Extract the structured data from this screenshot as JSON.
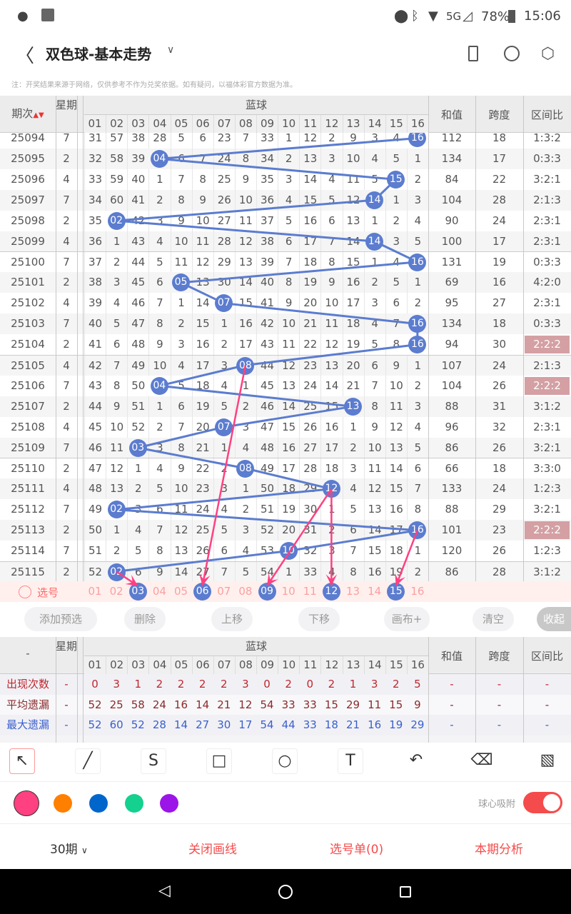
{
  "status": {
    "time": "15:06",
    "battery": "78%",
    "network": "5G",
    "left_icons": [
      "wechat-icon",
      "gallery-icon"
    ],
    "right_icons": [
      "location-icon",
      "bluetooth-icon",
      "wifi-icon",
      "signal-icon",
      "battery-icon"
    ]
  },
  "header": {
    "title": "双色球-基本走势",
    "back_icon": "chevron-left-icon",
    "dropdown_icon": "chevron-down-icon",
    "actions": [
      "portrait-icon",
      "share-icon",
      "settings-icon"
    ]
  },
  "note": "注：开奖结果来源于网络，仅供参考不作为兑奖依据。如有疑问，以福体彩官方数据为准。",
  "table": {
    "headers": {
      "period": "期次",
      "week": "星期",
      "blue": "蓝球",
      "sum": "和值",
      "span": "跨度",
      "ratio": "区间比"
    },
    "columns": [
      "01",
      "02",
      "03",
      "04",
      "05",
      "06",
      "07",
      "08",
      "09",
      "10",
      "11",
      "12",
      "13",
      "14",
      "15",
      "16"
    ],
    "ball_color": "#5b7ccf",
    "highlight_color": "#d4a0a3",
    "rows": [
      {
        "period": "25094",
        "week": "7",
        "hit": 16,
        "cells": [
          "31",
          "57",
          "38",
          "28",
          "5",
          "6",
          "23",
          "7",
          "33",
          "1",
          "12",
          "2",
          "9",
          "3",
          "4",
          "16"
        ],
        "sum": "112",
        "span": "18",
        "ratio": "1:3:2"
      },
      {
        "period": "25095",
        "week": "2",
        "hit": 4,
        "cells": [
          "32",
          "58",
          "39",
          "04",
          "6",
          "7",
          "24",
          "8",
          "34",
          "2",
          "13",
          "3",
          "10",
          "4",
          "5",
          "1"
        ],
        "sum": "134",
        "span": "17",
        "ratio": "0:3:3"
      },
      {
        "period": "25096",
        "week": "4",
        "hit": 15,
        "cells": [
          "33",
          "59",
          "40",
          "1",
          "7",
          "8",
          "25",
          "9",
          "35",
          "3",
          "14",
          "4",
          "11",
          "5",
          "15",
          "2"
        ],
        "sum": "84",
        "span": "22",
        "ratio": "3:2:1"
      },
      {
        "period": "25097",
        "week": "7",
        "hit": 14,
        "cells": [
          "34",
          "60",
          "41",
          "2",
          "8",
          "9",
          "26",
          "10",
          "36",
          "4",
          "15",
          "5",
          "12",
          "14",
          "1",
          "3"
        ],
        "sum": "104",
        "span": "28",
        "ratio": "2:1:3"
      },
      {
        "period": "25098",
        "week": "2",
        "hit": 2,
        "cells": [
          "35",
          "02",
          "42",
          "3",
          "9",
          "10",
          "27",
          "11",
          "37",
          "5",
          "16",
          "6",
          "13",
          "1",
          "2",
          "4"
        ],
        "sum": "90",
        "span": "24",
        "ratio": "2:3:1"
      },
      {
        "period": "25099",
        "week": "4",
        "hit": 14,
        "cells": [
          "36",
          "1",
          "43",
          "4",
          "10",
          "11",
          "28",
          "12",
          "38",
          "6",
          "17",
          "7",
          "14",
          "14",
          "3",
          "5"
        ],
        "sum": "100",
        "span": "17",
        "ratio": "2:3:1"
      },
      {
        "period": "25100",
        "week": "7",
        "hit": 16,
        "cells": [
          "37",
          "2",
          "44",
          "5",
          "11",
          "12",
          "29",
          "13",
          "39",
          "7",
          "18",
          "8",
          "15",
          "1",
          "4",
          "16"
        ],
        "sum": "131",
        "span": "19",
        "ratio": "0:3:3"
      },
      {
        "period": "25101",
        "week": "2",
        "hit": 5,
        "cells": [
          "38",
          "3",
          "45",
          "6",
          "05",
          "13",
          "30",
          "14",
          "40",
          "8",
          "19",
          "9",
          "16",
          "2",
          "5",
          "1"
        ],
        "sum": "69",
        "span": "16",
        "ratio": "4:2:0"
      },
      {
        "period": "25102",
        "week": "4",
        "hit": 7,
        "cells": [
          "39",
          "4",
          "46",
          "7",
          "1",
          "14",
          "07",
          "15",
          "41",
          "9",
          "20",
          "10",
          "17",
          "3",
          "6",
          "2"
        ],
        "sum": "95",
        "span": "27",
        "ratio": "2:3:1"
      },
      {
        "period": "25103",
        "week": "7",
        "hit": 16,
        "cells": [
          "40",
          "5",
          "47",
          "8",
          "2",
          "15",
          "1",
          "16",
          "42",
          "10",
          "21",
          "11",
          "18",
          "4",
          "7",
          "16"
        ],
        "sum": "134",
        "span": "18",
        "ratio": "0:3:3"
      },
      {
        "period": "25104",
        "week": "2",
        "hit": 16,
        "cells": [
          "41",
          "6",
          "48",
          "9",
          "3",
          "16",
          "2",
          "17",
          "43",
          "11",
          "22",
          "12",
          "19",
          "5",
          "8",
          "16"
        ],
        "sum": "94",
        "span": "30",
        "ratio": "2:2:2",
        "highlight": true
      },
      {
        "period": "25105",
        "week": "4",
        "hit": 8,
        "cells": [
          "42",
          "7",
          "49",
          "10",
          "4",
          "17",
          "3",
          "08",
          "44",
          "12",
          "23",
          "13",
          "20",
          "6",
          "9",
          "1"
        ],
        "sum": "107",
        "span": "24",
        "ratio": "2:1:3"
      },
      {
        "period": "25106",
        "week": "7",
        "hit": 4,
        "cells": [
          "43",
          "8",
          "50",
          "04",
          "5",
          "18",
          "4",
          "1",
          "45",
          "13",
          "24",
          "14",
          "21",
          "7",
          "10",
          "2"
        ],
        "sum": "104",
        "span": "26",
        "ratio": "2:2:2",
        "highlight": true
      },
      {
        "period": "25107",
        "week": "2",
        "hit": 13,
        "cells": [
          "44",
          "9",
          "51",
          "1",
          "6",
          "19",
          "5",
          "2",
          "46",
          "14",
          "25",
          "15",
          "13",
          "8",
          "11",
          "3"
        ],
        "sum": "88",
        "span": "31",
        "ratio": "3:1:2"
      },
      {
        "period": "25108",
        "week": "4",
        "hit": 7,
        "cells": [
          "45",
          "10",
          "52",
          "2",
          "7",
          "20",
          "07",
          "3",
          "47",
          "15",
          "26",
          "16",
          "1",
          "9",
          "12",
          "4"
        ],
        "sum": "96",
        "span": "32",
        "ratio": "2:3:1"
      },
      {
        "period": "25109",
        "week": "7",
        "hit": 3,
        "cells": [
          "46",
          "11",
          "03",
          "3",
          "8",
          "21",
          "1",
          "4",
          "48",
          "16",
          "27",
          "17",
          "2",
          "10",
          "13",
          "5"
        ],
        "sum": "86",
        "span": "26",
        "ratio": "3:2:1"
      },
      {
        "period": "25110",
        "week": "2",
        "hit": 8,
        "cells": [
          "47",
          "12",
          "1",
          "4",
          "9",
          "22",
          "2",
          "08",
          "49",
          "17",
          "28",
          "18",
          "3",
          "11",
          "14",
          "6"
        ],
        "sum": "66",
        "span": "18",
        "ratio": "3:3:0"
      },
      {
        "period": "25111",
        "week": "4",
        "hit": 12,
        "cells": [
          "48",
          "13",
          "2",
          "5",
          "10",
          "23",
          "3",
          "1",
          "50",
          "18",
          "29",
          "12",
          "4",
          "12",
          "15",
          "7"
        ],
        "sum": "133",
        "span": "24",
        "ratio": "1:2:3"
      },
      {
        "period": "25112",
        "week": "7",
        "hit": 2,
        "cells": [
          "49",
          "02",
          "3",
          "6",
          "11",
          "24",
          "4",
          "2",
          "51",
          "19",
          "30",
          "1",
          "5",
          "13",
          "16",
          "8"
        ],
        "sum": "88",
        "span": "29",
        "ratio": "3:2:1"
      },
      {
        "period": "25113",
        "week": "2",
        "hit": 16,
        "cells": [
          "50",
          "1",
          "4",
          "7",
          "12",
          "25",
          "5",
          "3",
          "52",
          "20",
          "31",
          "2",
          "6",
          "14",
          "17",
          "16"
        ],
        "sum": "101",
        "span": "23",
        "ratio": "2:2:2",
        "highlight": true
      },
      {
        "period": "25114",
        "week": "7",
        "hit": 10,
        "cells": [
          "51",
          "2",
          "5",
          "8",
          "13",
          "26",
          "6",
          "4",
          "53",
          "10",
          "32",
          "3",
          "7",
          "15",
          "18",
          "1"
        ],
        "sum": "120",
        "span": "26",
        "ratio": "1:2:3"
      },
      {
        "period": "25115",
        "week": "2",
        "hit": 2,
        "cells": [
          "52",
          "02",
          "6",
          "9",
          "14",
          "27",
          "7",
          "5",
          "54",
          "1",
          "33",
          "4",
          "8",
          "16",
          "19",
          "2"
        ],
        "sum": "86",
        "span": "28",
        "ratio": "3:1:2"
      }
    ],
    "select_row": {
      "label": "选号",
      "selected": [
        3,
        6,
        9,
        12,
        15
      ]
    },
    "arrows": [
      {
        "from_period": "25115",
        "from_col": 2,
        "to_col": 3
      },
      {
        "from_period": "25105",
        "from_col": 8,
        "to_col": 6
      },
      {
        "from_period": "25111",
        "from_col": 12,
        "to_col": 9
      },
      {
        "from_period": "25111",
        "from_col": 12,
        "to_col": 12
      },
      {
        "from_period": "25113",
        "from_col": 16,
        "to_col": 15
      }
    ],
    "arrow_color": "#ff4081"
  },
  "buttons": [
    "添加预选",
    "删除",
    "上移",
    "下移",
    "画布+",
    "清空",
    "收起"
  ],
  "stats": {
    "header_first": "-",
    "rows": [
      {
        "label": "出现次数",
        "color": "#c0262d",
        "week": "-",
        "values": [
          "0",
          "3",
          "1",
          "2",
          "2",
          "2",
          "2",
          "3",
          "0",
          "2",
          "0",
          "2",
          "1",
          "3",
          "2",
          "5"
        ],
        "sum": "-",
        "span": "-",
        "ratio": "-"
      },
      {
        "label": "平均遗漏",
        "color": "#8b2a2a",
        "week": "-",
        "values": [
          "52",
          "25",
          "58",
          "24",
          "16",
          "14",
          "21",
          "12",
          "54",
          "33",
          "33",
          "15",
          "29",
          "11",
          "15",
          "9"
        ],
        "sum": "-",
        "span": "-",
        "ratio": "-"
      },
      {
        "label": "最大遗漏",
        "color": "#3a5fcd",
        "week": "-",
        "values": [
          "52",
          "60",
          "52",
          "28",
          "14",
          "27",
          "30",
          "17",
          "54",
          "44",
          "33",
          "18",
          "21",
          "16",
          "19",
          "29"
        ],
        "sum": "-",
        "span": "-",
        "ratio": "-"
      }
    ]
  },
  "tools": [
    "arrow-tool-icon",
    "line-tool-icon",
    "curve-tool-icon",
    "rectangle-tool-icon",
    "circle-tool-icon",
    "text-tool-icon",
    "undo-icon",
    "eraser-icon",
    "clear-icon"
  ],
  "colors": [
    "#ff4081",
    "#ff7f00",
    "#0066cc",
    "#14d18f",
    "#9b14e8"
  ],
  "snap": {
    "label": "球心吸附",
    "on": true,
    "color": "#f44c4c"
  },
  "bottom": {
    "period_select": "30期",
    "close_drawing": "关闭画线",
    "pick_list": "选号单(0)",
    "analysis": "本期分析",
    "accent": "#f44c4c"
  }
}
